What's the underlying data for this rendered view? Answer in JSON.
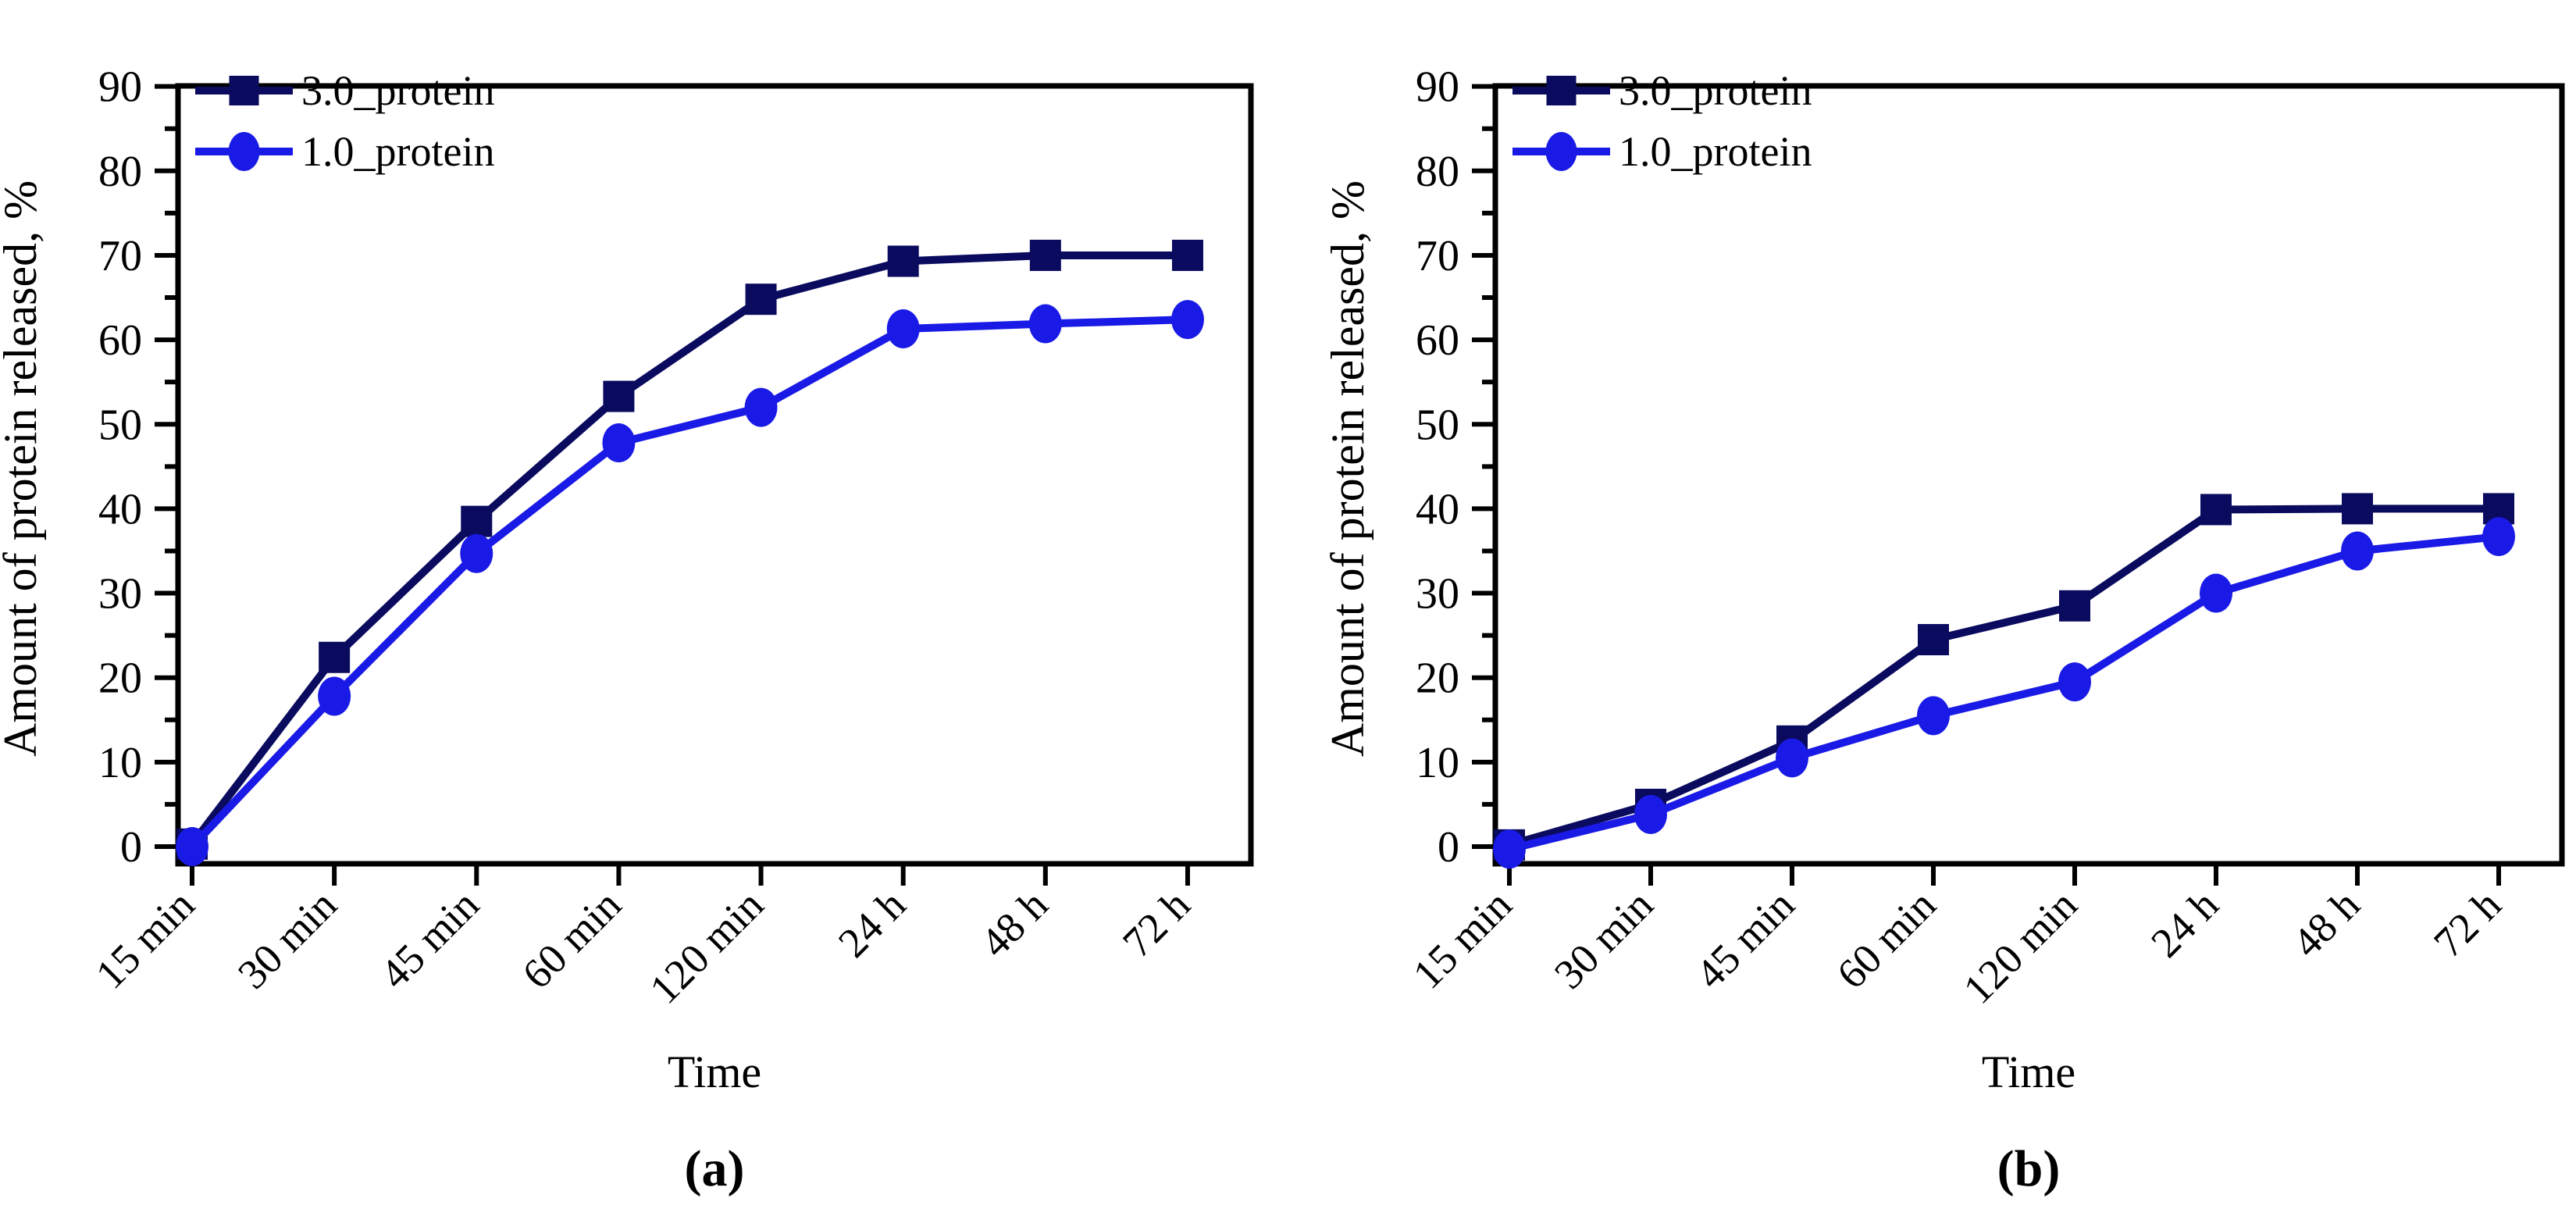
{
  "figure": {
    "background": "#ffffff",
    "text_color": "#000000",
    "time_label": "Time",
    "panel_labels": [
      "(a)",
      "(b)"
    ]
  },
  "chart_data": [
    {
      "type": "line",
      "panel_label": "(a)",
      "title": "",
      "xlabel": "Time",
      "ylabel": "Amount of protein released, %",
      "categories": [
        "15 min",
        "30 min",
        "45 min",
        "60 min",
        "120 min",
        "24 h",
        "48 h",
        "72 h"
      ],
      "series": [
        {
          "name": "3.0_protein",
          "marker": "square",
          "color": "#0a0a5f",
          "values": [
            0.3,
            22.4,
            38.5,
            53.3,
            64.8,
            69.3,
            70.0,
            70.0
          ]
        },
        {
          "name": "1.0_protein",
          "marker": "circle",
          "color": "#1a1ae6",
          "values": [
            0.0,
            17.8,
            34.7,
            47.8,
            52.0,
            61.3,
            61.9,
            62.4
          ]
        }
      ],
      "ylim": [
        0,
        90
      ],
      "ytick_step": 10,
      "yminor_step": 5,
      "grid": false,
      "legend_position": "top-left",
      "legend_entries": [
        "3.0_protein",
        "1.0_protein"
      ]
    },
    {
      "type": "line",
      "panel_label": "(b)",
      "title": "",
      "xlabel": "Time",
      "ylabel": "Amount of protein released, %",
      "categories": [
        "15 min",
        "30 min",
        "45 min",
        "60 min",
        "120 min",
        "24 h",
        "48 h",
        "72 h"
      ],
      "series": [
        {
          "name": "3.0_protein",
          "marker": "square",
          "color": "#0a0a5f",
          "values": [
            0.2,
            5.0,
            12.5,
            24.5,
            28.5,
            39.9,
            40.0,
            40.0
          ]
        },
        {
          "name": "1.0_protein",
          "marker": "circle",
          "color": "#1a1ae6",
          "values": [
            -0.3,
            3.8,
            10.5,
            15.5,
            19.5,
            30.0,
            35.0,
            36.7
          ]
        }
      ],
      "ylim": [
        0,
        90
      ],
      "ytick_step": 10,
      "yminor_step": 5,
      "grid": false,
      "legend_position": "top-left",
      "legend_entries": [
        "3.0_protein",
        "1.0_protein"
      ]
    }
  ]
}
